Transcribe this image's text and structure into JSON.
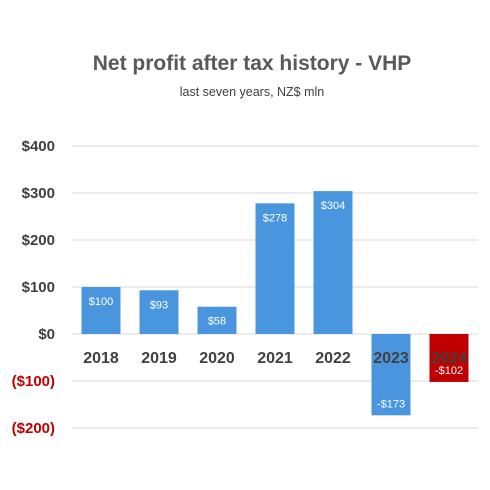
{
  "chart_data": {
    "type": "bar",
    "title": "Net profit after tax history - VHP",
    "subtitle": "last seven years, NZ$ mln",
    "categories": [
      "2018",
      "2019",
      "2020",
      "2021",
      "2022",
      "2023",
      "2024"
    ],
    "values": [
      100,
      93,
      58,
      278,
      304,
      -173,
      -102
    ],
    "data_labels": [
      "$100",
      "$93",
      "$58",
      "$278",
      "$304",
      "-$173",
      "-$102"
    ],
    "y_ticks": [
      400,
      300,
      200,
      100,
      0,
      -100,
      -200
    ],
    "y_tick_labels": [
      "$400",
      "$300",
      "$200",
      "$100",
      "$0",
      "($100)",
      "($200)"
    ],
    "ylim": [
      -200,
      400
    ],
    "grid": true,
    "colors": {
      "bar": "#4a96de",
      "highlight_bar": "#c00000",
      "negative_tick_label": "#c00000",
      "positive_tick_label": "#404040"
    }
  }
}
